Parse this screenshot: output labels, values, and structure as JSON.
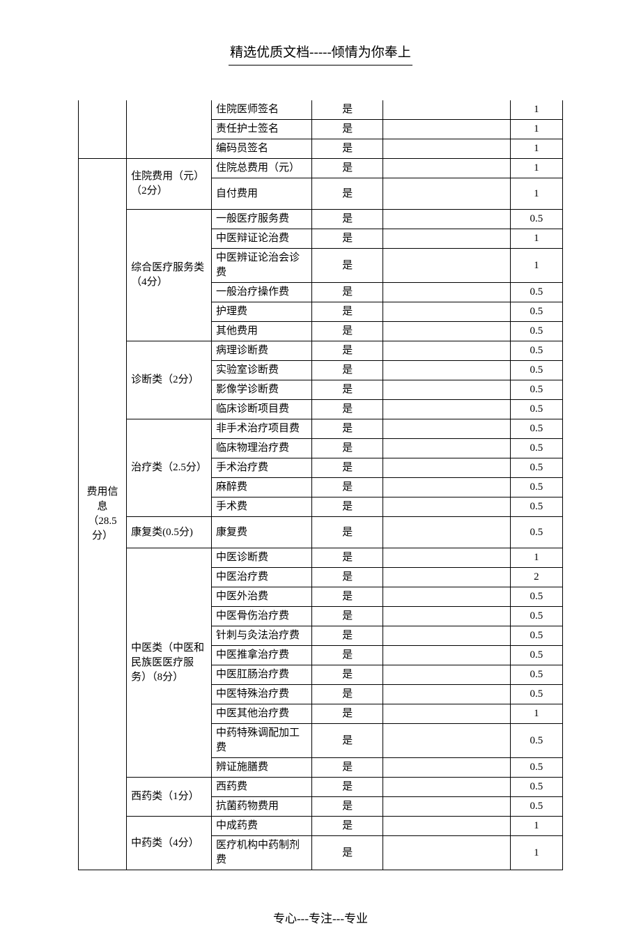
{
  "header": "精选优质文档-----倾情为你奉上",
  "footer": "专心---专注---专业",
  "yes": "是",
  "section1_label": "费用信息（28.5分）",
  "pre_rows": [
    {
      "c3": "住院医师签名",
      "c4": "是",
      "c6": "1"
    },
    {
      "c3": "责任护士签名",
      "c4": "是",
      "c6": "1"
    },
    {
      "c3": "编码员签名",
      "c4": "是",
      "c6": "1"
    }
  ],
  "groups": [
    {
      "label": "住院费用（元）（2分）",
      "rows": [
        {
          "c3": "住院总费用（元）",
          "c4": "是",
          "c6": "1"
        },
        {
          "c3": "自付费用",
          "c4": "是",
          "c6": "1",
          "tall": true
        }
      ]
    },
    {
      "label": "综合医疗服务类（4分）",
      "rows": [
        {
          "c3": "一般医疗服务费",
          "c4": "是",
          "c6": "0.5"
        },
        {
          "c3": "中医辩证论治费",
          "c4": "是",
          "c6": "1"
        },
        {
          "c3": "中医辨证论治会诊费",
          "c4": "是",
          "c6": "1",
          "tall": true
        },
        {
          "c3": "一般治疗操作费",
          "c4": "是",
          "c6": "0.5"
        },
        {
          "c3": "护理费",
          "c4": "是",
          "c6": "0.5"
        },
        {
          "c3": "其他费用",
          "c4": "是",
          "c6": "0.5"
        }
      ]
    },
    {
      "label": "诊断类（2分）",
      "rows": [
        {
          "c3": "病理诊断费",
          "c4": "是",
          "c6": "0.5"
        },
        {
          "c3": "实验室诊断费",
          "c4": "是",
          "c6": "0.5"
        },
        {
          "c3": "影像学诊断费",
          "c4": "是",
          "c6": "0.5"
        },
        {
          "c3": "临床诊断项目费",
          "c4": "是",
          "c6": "0.5"
        }
      ]
    },
    {
      "label": "治疗类（2.5分）",
      "rows": [
        {
          "c3": "非手术治疗项目费",
          "c4": "是",
          "c6": "0.5"
        },
        {
          "c3": "临床物理治疗费",
          "c4": "是",
          "c6": "0.5"
        },
        {
          "c3": "手术治疗费",
          "c4": "是",
          "c6": "0.5"
        },
        {
          "c3": "麻醉费",
          "c4": "是",
          "c6": "0.5"
        },
        {
          "c3": "手术费",
          "c4": "是",
          "c6": "0.5"
        }
      ]
    },
    {
      "label": "康复类(0.5分)",
      "rows": [
        {
          "c3": "康复费",
          "c4": "是",
          "c6": "0.5",
          "tall": true
        }
      ]
    },
    {
      "label": "中医类（中医和民族医医疗服务）（8分）",
      "rows": [
        {
          "c3": "中医诊断费",
          "c4": "是",
          "c6": "1"
        },
        {
          "c3": "中医治疗费",
          "c4": "是",
          "c6": "2"
        },
        {
          "c3": "中医外治费",
          "c4": "是",
          "c6": "0.5"
        },
        {
          "c3": "中医骨伤治疗费",
          "c4": "是",
          "c6": "0.5"
        },
        {
          "c3": "针刺与灸法治疗费",
          "c4": "是",
          "c6": "0.5"
        },
        {
          "c3": "中医推拿治疗费",
          "c4": "是",
          "c6": "0.5"
        },
        {
          "c3": "中医肛肠治疗费",
          "c4": "是",
          "c6": "0.5"
        },
        {
          "c3": "中医特殊治疗费",
          "c4": "是",
          "c6": "0.5"
        },
        {
          "c3": "中医其他治疗费",
          "c4": "是",
          "c6": "1"
        },
        {
          "c3": "中药特殊调配加工费",
          "c4": "是",
          "c6": "0.5",
          "tall": true
        },
        {
          "c3": "辨证施膳费",
          "c4": "是",
          "c6": "0.5"
        }
      ]
    },
    {
      "label": "西药类（1分）",
      "rows": [
        {
          "c3": "西药费",
          "c4": "是",
          "c6": "0.5"
        },
        {
          "c3": "抗菌药物费用",
          "c4": "是",
          "c6": "0.5"
        }
      ]
    },
    {
      "label": "中药类（4分）",
      "rows": [
        {
          "c3": "中成药费",
          "c4": "是",
          "c6": "1"
        },
        {
          "c3": "医疗机构中药制剂费",
          "c4": "是",
          "c6": "1",
          "tall": true
        }
      ]
    }
  ]
}
